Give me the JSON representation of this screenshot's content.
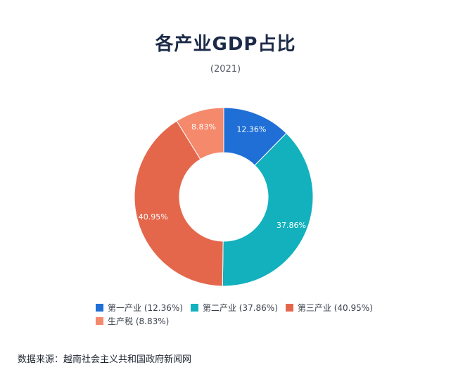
{
  "chart_data": {
    "type": "pie",
    "title": "各产业GDP占比",
    "subtitle": "(2021)",
    "categories": [
      "第一产业",
      "第二产业",
      "第三产业",
      "生产税"
    ],
    "values": [
      12.36,
      37.86,
      40.95,
      8.83
    ],
    "data_labels": [
      "12.36%",
      "37.86%",
      "40.95%",
      "8.83%"
    ],
    "legend_labels": [
      "第一产业 (12.36%)",
      "第二产业 (37.86%)",
      "第三产业 (40.95%)",
      "生产税 (8.83%)"
    ],
    "colors": [
      "#1f6fd6",
      "#12b1bd",
      "#e4674c",
      "#f5896c"
    ],
    "style": "donut",
    "legend_position": "bottom"
  },
  "source": "数据来源：越南社会主义共和国政府新闻网"
}
